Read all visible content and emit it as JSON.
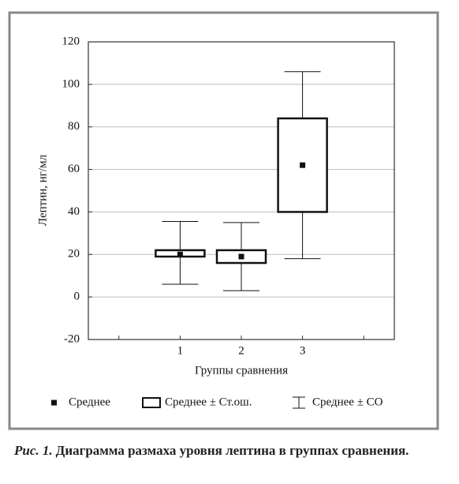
{
  "chart_data": {
    "type": "box",
    "y_label": "Лептин, нг/мл",
    "x_label": "Группы сравнения",
    "categories": [
      null,
      "1",
      "2",
      "3",
      null
    ],
    "ylim": [
      -20,
      120
    ],
    "yticks": [
      -20,
      0,
      20,
      40,
      60,
      80,
      100,
      120
    ],
    "grid": true,
    "series": [
      {
        "name": "Среднее",
        "color": "#111111",
        "values": [
          null,
          20,
          19,
          62,
          null
        ]
      },
      {
        "name": "Среднее ± Ст.ош.",
        "color": "#111111",
        "low": [
          null,
          19,
          16,
          40,
          null
        ],
        "high": [
          null,
          22,
          22,
          84,
          null
        ]
      },
      {
        "name": "Среднее ± СО",
        "color": "#111111",
        "low": [
          null,
          6,
          3,
          18,
          null
        ],
        "high": [
          null,
          35.5,
          35,
          106,
          null
        ]
      }
    ]
  },
  "caption": {
    "label": "Рис. 1.",
    "text": "Диаграмма размаха уровня лептина в группах сравнения."
  }
}
